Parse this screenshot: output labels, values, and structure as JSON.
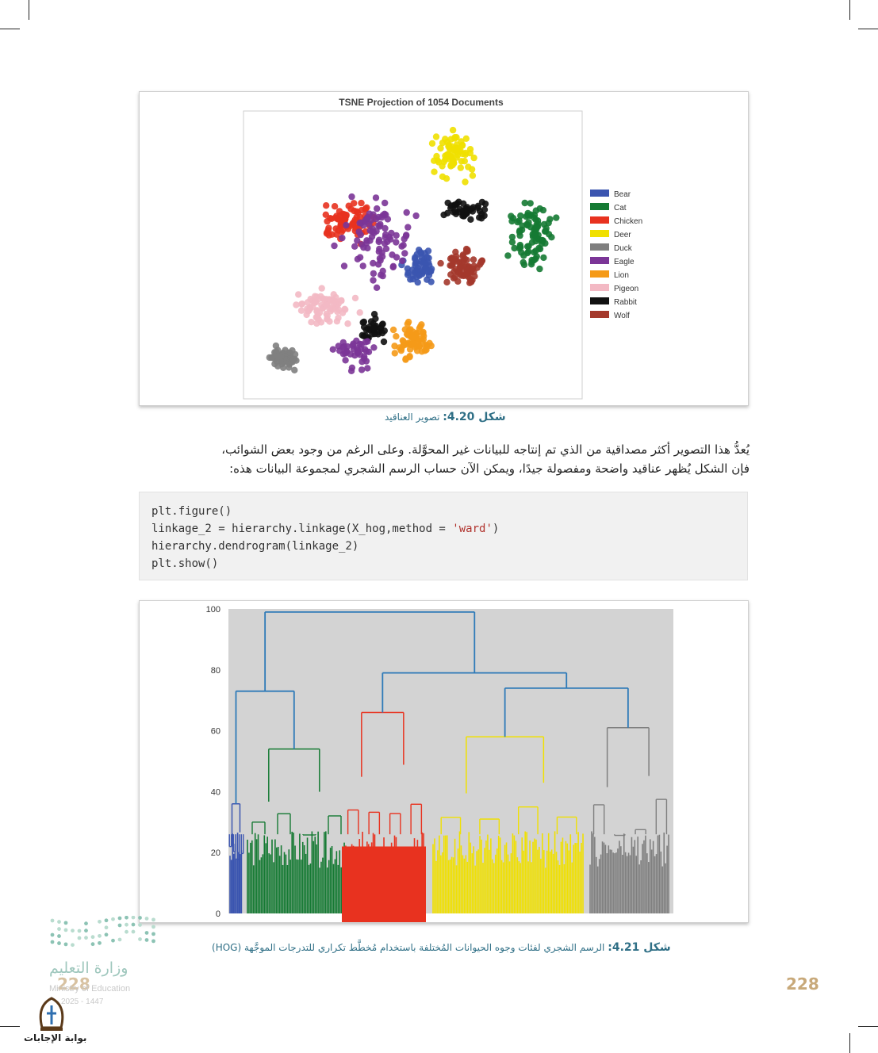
{
  "page": {
    "number_right": "228",
    "number_left": "228"
  },
  "figure_top": {
    "title": "TSNE Projection of 1054 Documents",
    "caption_label": "شكل 4.20:",
    "caption_text": "تصوير العناقيد",
    "legend": [
      {
        "name": "Bear",
        "color": "#3b55b0"
      },
      {
        "name": "Cat",
        "color": "#157a33"
      },
      {
        "name": "Chicken",
        "color": "#e8321f"
      },
      {
        "name": "Deer",
        "color": "#f0e000"
      },
      {
        "name": "Duck",
        "color": "#7f7f7f"
      },
      {
        "name": "Eagle",
        "color": "#7b3597"
      },
      {
        "name": "Lion",
        "color": "#f59a18"
      },
      {
        "name": "Pigeon",
        "color": "#f3b9c4"
      },
      {
        "name": "Rabbit",
        "color": "#111111"
      },
      {
        "name": "Wolf",
        "color": "#a4392c"
      }
    ]
  },
  "paragraph": {
    "line1": "يُعدُّ هذا التصوير أكثر مصداقية من الذي تم إنتاجه للبيانات غير المحوَّلة. وعلى الرغم من وجود بعض الشوائب،",
    "line2": "فإن الشكل يُظهر عناقيد واضحة ومفصولة جيدًا، ويمكن الآن حساب الرسم الشجري لمجموعة البيانات هذه: "
  },
  "code": {
    "line1": "plt.figure()",
    "line2_prefix": "linkage_2 = hierarchy.linkage(X_hog,method = ",
    "line2_str": "'ward'",
    "line2_suffix": ")",
    "line3": "hierarchy.dendrogram(linkage_2)",
    "line4": "plt.show()"
  },
  "figure_bottom": {
    "caption_label": "شكل 4.21:",
    "caption_text": "الرسم الشجري لفئات وجوه الحيوانات المُختلفة باستخدام مُخطَّط تكراري للتدرجات الموجَّهة (HOG)"
  },
  "chart_data": {
    "type": "dendrogram",
    "ylim": [
      0,
      100
    ],
    "yticks": [
      0,
      20,
      40,
      60,
      80,
      100
    ],
    "clusters": [
      {
        "color": "#3b55b0",
        "merge_height": 36
      },
      {
        "color": "#157a33",
        "merge_height": 54
      },
      {
        "color": "#e8321f",
        "merge_height": 66
      },
      {
        "color": "#f0e000",
        "merge_height": 58
      },
      {
        "color": "#7f7f7f",
        "merge_height": 61
      }
    ],
    "links_color": "#2e7ab8",
    "top_merge_height": 99,
    "background": "#d3d3d3"
  },
  "footer": {
    "ministry_ar": "وزارة التعليم",
    "ministry_en": "Ministry of Education",
    "year": "2025 - 1447",
    "portal": "بوابة الإجابات"
  }
}
